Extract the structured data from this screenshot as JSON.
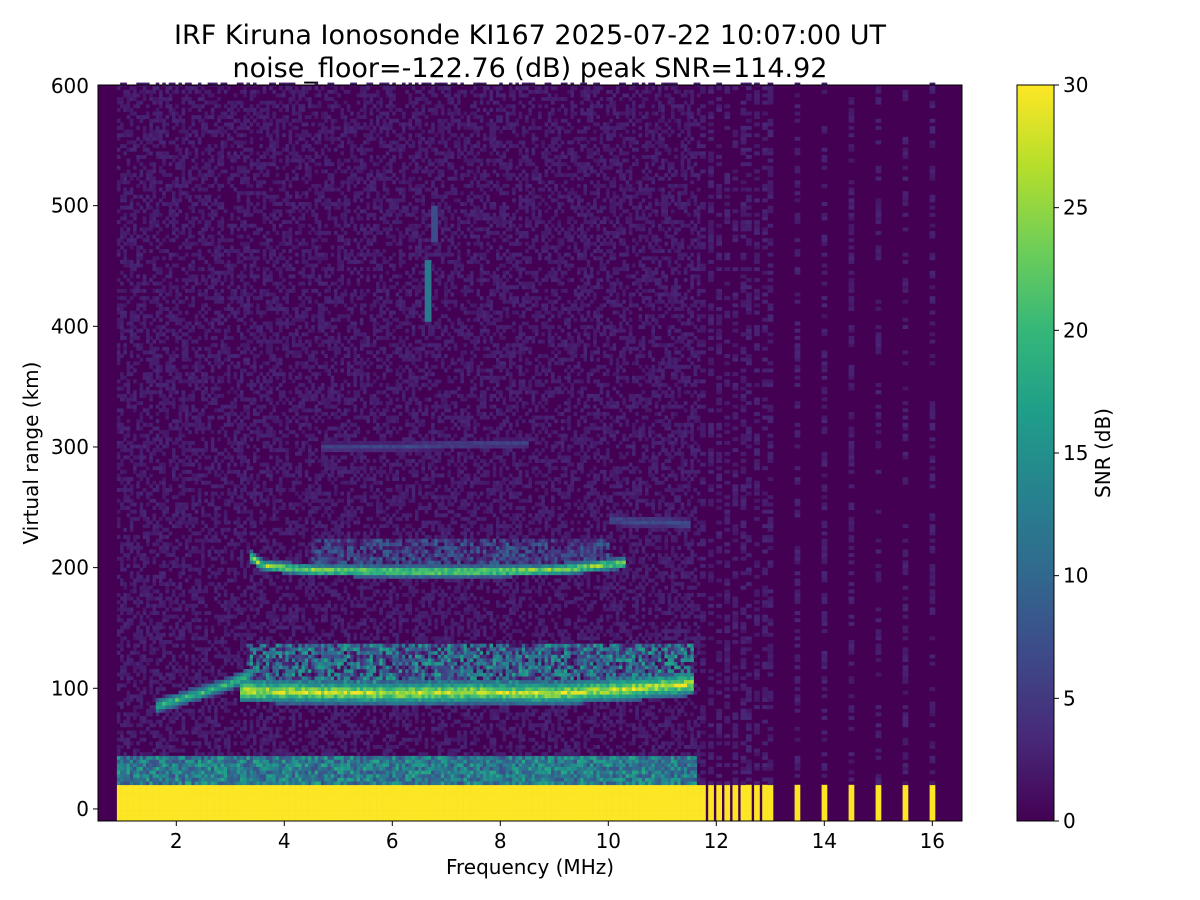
{
  "chart_data": {
    "type": "heatmap",
    "title_line1": "IRF Kiruna Ionosonde KI167 2025-07-22 10:07:00  UT",
    "title_line2": "noise_floor=-122.76 (dB) peak SNR=114.92",
    "xlabel": "Frequency (MHz)",
    "ylabel": "Virtual range (km)",
    "colorbar_label": "SNR (dB)",
    "xlim": [
      0.55,
      16.55
    ],
    "ylim": [
      -10,
      600
    ],
    "clim": [
      0,
      30
    ],
    "x_ticks": [
      2,
      4,
      6,
      8,
      10,
      12,
      14,
      16
    ],
    "x_tick_labels": [
      "2",
      "4",
      "6",
      "8",
      "10",
      "12",
      "14",
      "16"
    ],
    "y_ticks": [
      0,
      100,
      200,
      300,
      400,
      500
    ],
    "y_tick_labels": [
      "0",
      "100",
      "200",
      "300",
      "400",
      "500"
    ],
    "y_top_label": "600",
    "c_ticks": [
      0,
      5,
      10,
      15,
      20,
      25,
      30
    ],
    "c_tick_labels": [
      "0",
      "5",
      "10",
      "15",
      "20",
      "25",
      "30"
    ],
    "colormap": "viridis",
    "colormap_stops": [
      "#440154",
      "#482878",
      "#3e4989",
      "#31688e",
      "#26828e",
      "#1f9e89",
      "#35b779",
      "#6ece58",
      "#b5de2b",
      "#fde725"
    ],
    "data_freq_range_mhz": [
      0.9,
      16.3
    ],
    "wideband_end_mhz": 11.65,
    "discrete_freqs_mhz": [
      11.75,
      11.9,
      12.05,
      12.2,
      12.35,
      12.5,
      12.6,
      12.75,
      12.9,
      13.0,
      13.5,
      14.0,
      14.5,
      15.0,
      15.5,
      16.0
    ],
    "features": [
      {
        "kind": "ground",
        "f0": 0.9,
        "f1": 16.3,
        "r0": -10,
        "r1": 20,
        "snr": 30
      },
      {
        "kind": "band",
        "f0": 0.9,
        "f1": 11.65,
        "r0": 20,
        "r1": 45,
        "snr": 14
      },
      {
        "kind": "trace",
        "points": [
          [
            1.6,
            85
          ],
          [
            2.0,
            90
          ],
          [
            2.5,
            97
          ],
          [
            3.0,
            104
          ],
          [
            3.3,
            110
          ]
        ],
        "width": 6,
        "snr": 22
      },
      {
        "kind": "trace",
        "points": [
          [
            3.2,
            98
          ],
          [
            4.5,
            97
          ],
          [
            6.0,
            96
          ],
          [
            7.5,
            97
          ],
          [
            9.0,
            96
          ],
          [
            10.5,
            100
          ],
          [
            11.6,
            104
          ]
        ],
        "width": 10,
        "snr": 29
      },
      {
        "kind": "cloud",
        "f0": 3.3,
        "f1": 11.6,
        "r0": 100,
        "r1": 138,
        "snr": 16
      },
      {
        "kind": "trace",
        "points": [
          [
            3.35,
            210
          ],
          [
            3.6,
            202
          ],
          [
            4.5,
            198
          ],
          [
            6.0,
            197
          ],
          [
            7.5,
            197
          ],
          [
            9.0,
            198
          ],
          [
            10.3,
            204
          ]
        ],
        "width": 5,
        "snr": 27
      },
      {
        "kind": "cloud",
        "f0": 4.5,
        "f1": 10.0,
        "r0": 200,
        "r1": 225,
        "snr": 9
      },
      {
        "kind": "trace",
        "points": [
          [
            4.7,
            300
          ],
          [
            6.0,
            300
          ],
          [
            7.2,
            302
          ],
          [
            8.5,
            303
          ]
        ],
        "width": 4,
        "snr": 7
      },
      {
        "kind": "trace",
        "points": [
          [
            10.0,
            240
          ],
          [
            10.5,
            238
          ],
          [
            11.0,
            238
          ],
          [
            11.5,
            236
          ]
        ],
        "width": 5,
        "snr": 8
      },
      {
        "kind": "streak",
        "f": 6.65,
        "r0": 405,
        "r1": 455,
        "snr": 12
      },
      {
        "kind": "streak",
        "f": 6.8,
        "r0": 470,
        "r1": 500,
        "snr": 7
      }
    ]
  }
}
